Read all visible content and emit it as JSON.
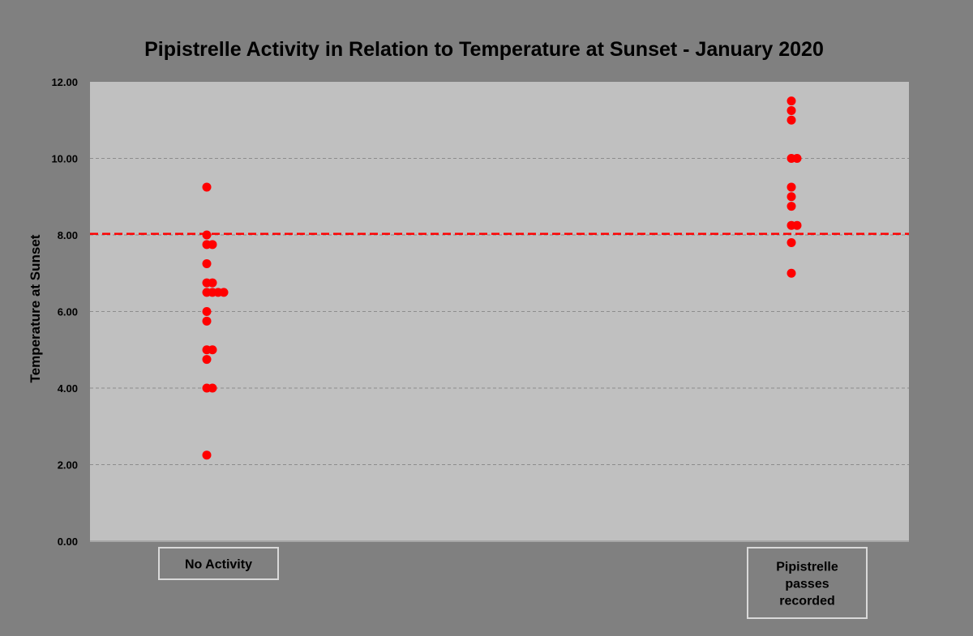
{
  "chart_data": {
    "type": "scatter",
    "title": "Pipistrelle  Activity in Relation to Temperature at Sunset - January 2020",
    "ylabel": "Temperature at Sunset",
    "xlabel": "",
    "ylim": [
      0,
      12
    ],
    "yticks": [
      "0.00",
      "2.00",
      "4.00",
      "6.00",
      "8.00",
      "10.00",
      "12.00"
    ],
    "grid": true,
    "threshold_line": 8.03,
    "colors": {
      "background": "#808080",
      "plot_area": "#c0c0c0",
      "points": "#ff0000",
      "threshold": "#ff0000"
    },
    "categories": [
      {
        "lines": [
          "No Activity"
        ]
      },
      {
        "lines": [
          "Pipistrelle",
          "passes",
          "recorded"
        ]
      }
    ],
    "series": [
      {
        "category_index": 0,
        "values": [
          9.25,
          8.0,
          7.75,
          7.75,
          7.25,
          6.75,
          6.75,
          6.5,
          6.5,
          6.5,
          6.5,
          6.0,
          5.75,
          5.0,
          5.0,
          4.75,
          4.0,
          4.0,
          2.25
        ]
      },
      {
        "category_index": 1,
        "values": [
          11.5,
          11.25,
          11.0,
          10.0,
          10.0,
          9.25,
          9.0,
          8.75,
          8.25,
          8.25,
          7.8,
          7.0
        ]
      }
    ]
  }
}
